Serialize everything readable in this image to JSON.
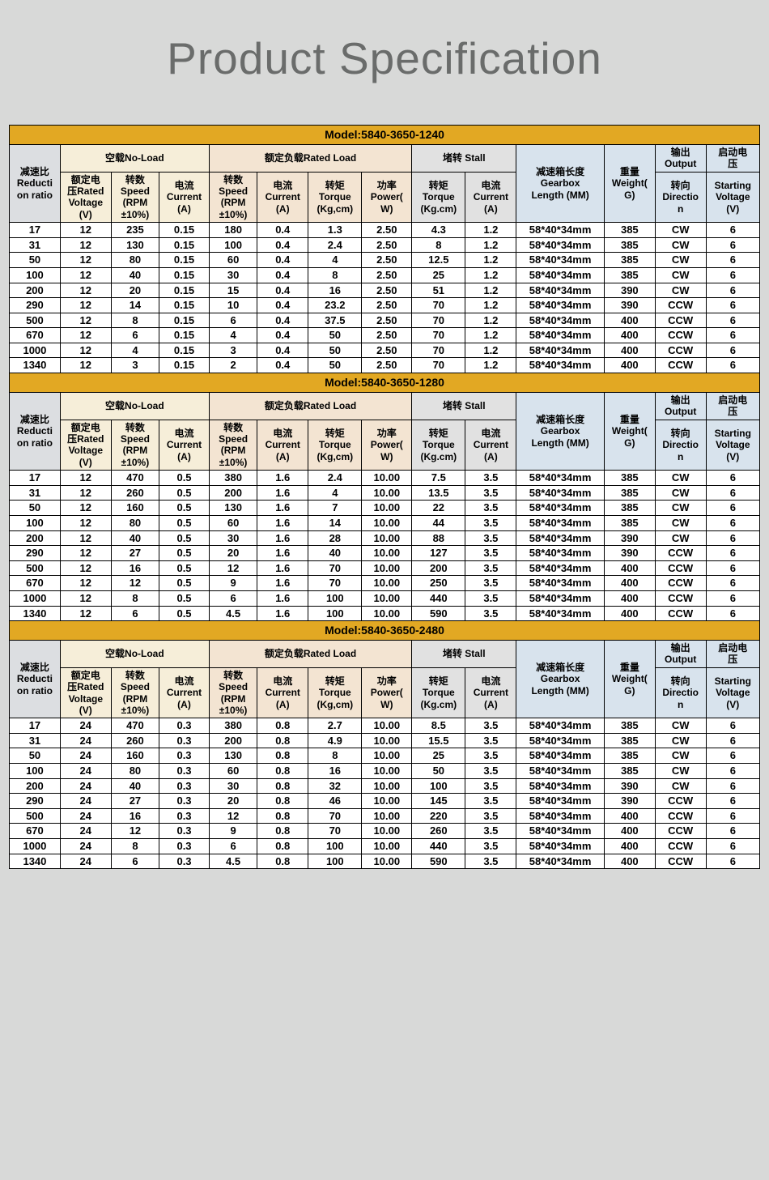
{
  "title": "Product Specification",
  "headers": {
    "ratio": "减速比\nReducti\non ratio",
    "group_noload": "空载No-Load",
    "group_rated": "额定负载Rated Load",
    "group_stall": "堵转 Stall",
    "voltage": "额定电\n压Rated\nVoltage\n(V)",
    "speed_nl": "转数\nSpeed\n(RPM\n±10%)",
    "current_nl": "电流\nCurrent\n(A)",
    "speed_rl": "转数\nSpeed\n(RPM\n±10%)",
    "current_rl": "电流\nCurrent\n(A)",
    "torque_rl": "转矩\nTorque\n(Kg,cm)",
    "power_rl": "功率\nPower(\nW)",
    "torque_st": "转矩\nTorque\n(Kg.cm)",
    "current_st": "电流\nCurrent\n(A)",
    "gearbox": "减速箱长度\nGearbox\nLength (MM)",
    "weight": "重量\nWeight(\nG)",
    "output": "输出\nOutput",
    "direction": "转向\nDirectio\nn",
    "startv_top": "启动电\n压",
    "startv": "Starting\nVoltage\n(V)"
  },
  "models": [
    {
      "name": "Model:5840-3650-1240",
      "rows": [
        [
          "17",
          "12",
          "235",
          "0.15",
          "180",
          "0.4",
          "1.3",
          "2.50",
          "4.3",
          "1.2",
          "58*40*34mm",
          "385",
          "CW",
          "6"
        ],
        [
          "31",
          "12",
          "130",
          "0.15",
          "100",
          "0.4",
          "2.4",
          "2.50",
          "8",
          "1.2",
          "58*40*34mm",
          "385",
          "CW",
          "6"
        ],
        [
          "50",
          "12",
          "80",
          "0.15",
          "60",
          "0.4",
          "4",
          "2.50",
          "12.5",
          "1.2",
          "58*40*34mm",
          "385",
          "CW",
          "6"
        ],
        [
          "100",
          "12",
          "40",
          "0.15",
          "30",
          "0.4",
          "8",
          "2.50",
          "25",
          "1.2",
          "58*40*34mm",
          "385",
          "CW",
          "6"
        ],
        [
          "200",
          "12",
          "20",
          "0.15",
          "15",
          "0.4",
          "16",
          "2.50",
          "51",
          "1.2",
          "58*40*34mm",
          "390",
          "CW",
          "6"
        ],
        [
          "290",
          "12",
          "14",
          "0.15",
          "10",
          "0.4",
          "23.2",
          "2.50",
          "70",
          "1.2",
          "58*40*34mm",
          "390",
          "CCW",
          "6"
        ],
        [
          "500",
          "12",
          "8",
          "0.15",
          "6",
          "0.4",
          "37.5",
          "2.50",
          "70",
          "1.2",
          "58*40*34mm",
          "400",
          "CCW",
          "6"
        ],
        [
          "670",
          "12",
          "6",
          "0.15",
          "4",
          "0.4",
          "50",
          "2.50",
          "70",
          "1.2",
          "58*40*34mm",
          "400",
          "CCW",
          "6"
        ],
        [
          "1000",
          "12",
          "4",
          "0.15",
          "3",
          "0.4",
          "50",
          "2.50",
          "70",
          "1.2",
          "58*40*34mm",
          "400",
          "CCW",
          "6"
        ],
        [
          "1340",
          "12",
          "3",
          "0.15",
          "2",
          "0.4",
          "50",
          "2.50",
          "70",
          "1.2",
          "58*40*34mm",
          "400",
          "CCW",
          "6"
        ]
      ]
    },
    {
      "name": "Model:5840-3650-1280",
      "rows": [
        [
          "17",
          "12",
          "470",
          "0.5",
          "380",
          "1.6",
          "2.4",
          "10.00",
          "7.5",
          "3.5",
          "58*40*34mm",
          "385",
          "CW",
          "6"
        ],
        [
          "31",
          "12",
          "260",
          "0.5",
          "200",
          "1.6",
          "4",
          "10.00",
          "13.5",
          "3.5",
          "58*40*34mm",
          "385",
          "CW",
          "6"
        ],
        [
          "50",
          "12",
          "160",
          "0.5",
          "130",
          "1.6",
          "7",
          "10.00",
          "22",
          "3.5",
          "58*40*34mm",
          "385",
          "CW",
          "6"
        ],
        [
          "100",
          "12",
          "80",
          "0.5",
          "60",
          "1.6",
          "14",
          "10.00",
          "44",
          "3.5",
          "58*40*34mm",
          "385",
          "CW",
          "6"
        ],
        [
          "200",
          "12",
          "40",
          "0.5",
          "30",
          "1.6",
          "28",
          "10.00",
          "88",
          "3.5",
          "58*40*34mm",
          "390",
          "CW",
          "6"
        ],
        [
          "290",
          "12",
          "27",
          "0.5",
          "20",
          "1.6",
          "40",
          "10.00",
          "127",
          "3.5",
          "58*40*34mm",
          "390",
          "CCW",
          "6"
        ],
        [
          "500",
          "12",
          "16",
          "0.5",
          "12",
          "1.6",
          "70",
          "10.00",
          "200",
          "3.5",
          "58*40*34mm",
          "400",
          "CCW",
          "6"
        ],
        [
          "670",
          "12",
          "12",
          "0.5",
          "9",
          "1.6",
          "70",
          "10.00",
          "250",
          "3.5",
          "58*40*34mm",
          "400",
          "CCW",
          "6"
        ],
        [
          "1000",
          "12",
          "8",
          "0.5",
          "6",
          "1.6",
          "100",
          "10.00",
          "440",
          "3.5",
          "58*40*34mm",
          "400",
          "CCW",
          "6"
        ],
        [
          "1340",
          "12",
          "6",
          "0.5",
          "4.5",
          "1.6",
          "100",
          "10.00",
          "590",
          "3.5",
          "58*40*34mm",
          "400",
          "CCW",
          "6"
        ]
      ]
    },
    {
      "name": "Model:5840-3650-2480",
      "rows": [
        [
          "17",
          "24",
          "470",
          "0.3",
          "380",
          "0.8",
          "2.7",
          "10.00",
          "8.5",
          "3.5",
          "58*40*34mm",
          "385",
          "CW",
          "6"
        ],
        [
          "31",
          "24",
          "260",
          "0.3",
          "200",
          "0.8",
          "4.9",
          "10.00",
          "15.5",
          "3.5",
          "58*40*34mm",
          "385",
          "CW",
          "6"
        ],
        [
          "50",
          "24",
          "160",
          "0.3",
          "130",
          "0.8",
          "8",
          "10.00",
          "25",
          "3.5",
          "58*40*34mm",
          "385",
          "CW",
          "6"
        ],
        [
          "100",
          "24",
          "80",
          "0.3",
          "60",
          "0.8",
          "16",
          "10.00",
          "50",
          "3.5",
          "58*40*34mm",
          "385",
          "CW",
          "6"
        ],
        [
          "200",
          "24",
          "40",
          "0.3",
          "30",
          "0.8",
          "32",
          "10.00",
          "100",
          "3.5",
          "58*40*34mm",
          "390",
          "CW",
          "6"
        ],
        [
          "290",
          "24",
          "27",
          "0.3",
          "20",
          "0.8",
          "46",
          "10.00",
          "145",
          "3.5",
          "58*40*34mm",
          "390",
          "CCW",
          "6"
        ],
        [
          "500",
          "24",
          "16",
          "0.3",
          "12",
          "0.8",
          "70",
          "10.00",
          "220",
          "3.5",
          "58*40*34mm",
          "400",
          "CCW",
          "6"
        ],
        [
          "670",
          "24",
          "12",
          "0.3",
          "9",
          "0.8",
          "70",
          "10.00",
          "260",
          "3.5",
          "58*40*34mm",
          "400",
          "CCW",
          "6"
        ],
        [
          "1000",
          "24",
          "8",
          "0.3",
          "6",
          "0.8",
          "100",
          "10.00",
          "440",
          "3.5",
          "58*40*34mm",
          "400",
          "CCW",
          "6"
        ],
        [
          "1340",
          "24",
          "6",
          "0.3",
          "4.5",
          "0.8",
          "100",
          "10.00",
          "590",
          "3.5",
          "58*40*34mm",
          "400",
          "CCW",
          "6"
        ]
      ]
    }
  ],
  "colors": {
    "page_bg": "#d8d9d8",
    "title": "#6a6c6b",
    "model_bg": "#e2a823",
    "ratio_bg": "#dcdee1",
    "noload_bg": "#f6eed9",
    "rated_bg": "#f3e4d2",
    "stall_bg": "#e1e1e1",
    "misc_bg": "#d8e3ed",
    "border": "#000000"
  }
}
